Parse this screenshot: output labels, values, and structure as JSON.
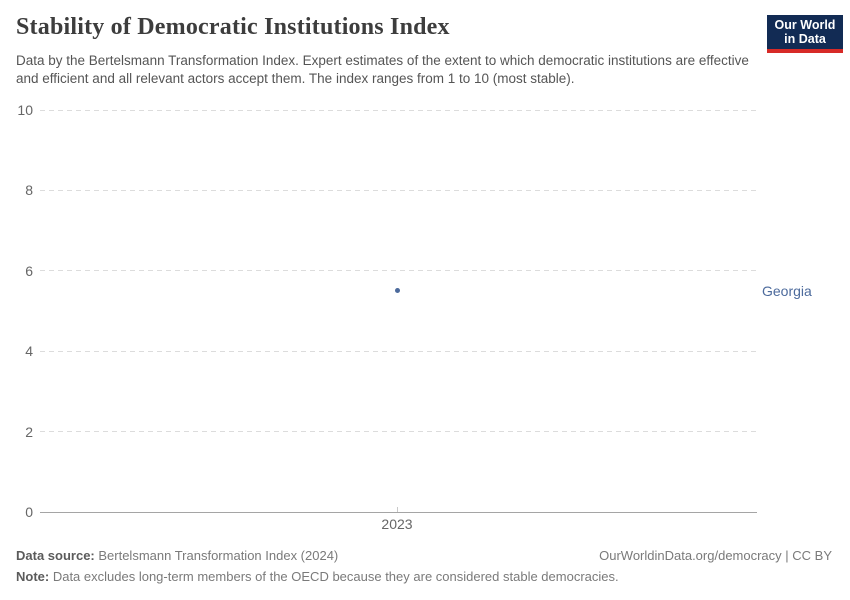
{
  "header": {
    "title": "Stability of Democratic Institutions Index",
    "subtitle": "Data by the Bertelsmann Transformation Index. Expert estimates of the extent to which democratic institutions are effective and efficient and all relevant actors accept them. The index ranges from 1 to 10 (most stable).",
    "logo": {
      "line1": "Our World",
      "line2": "in Data",
      "bg_color": "#122b54",
      "stripe_color": "#d72a27"
    }
  },
  "chart_data": {
    "type": "scatter",
    "title": "Stability of Democratic Institutions Index",
    "x": [
      2023
    ],
    "series": [
      {
        "name": "Georgia",
        "values": [
          5.5
        ],
        "color": "#4c6a9c"
      }
    ],
    "xlabel": "",
    "ylabel": "",
    "ylim": [
      0,
      10
    ],
    "yticks": [
      0,
      2,
      4,
      6,
      8,
      10
    ],
    "xticks": [
      2023
    ],
    "grid": "horizontal-dashed",
    "legend_position": "right-entity-label"
  },
  "footer": {
    "source_label": "Data source:",
    "source_text": " Bertelsmann Transformation Index (2024)",
    "credit": "OurWorldinData.org/democracy | CC BY",
    "note_label": "Note:",
    "note_text": " Data excludes long-term members of the OECD because they are considered stable democracies."
  }
}
